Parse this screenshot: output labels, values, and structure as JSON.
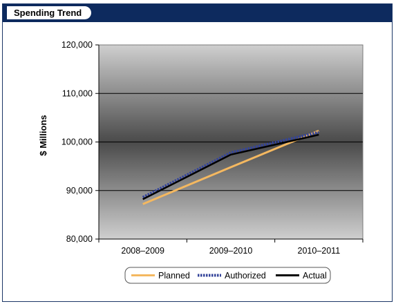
{
  "panel": {
    "title": "Spending Trend"
  },
  "chart_data": {
    "type": "line",
    "title": "",
    "xlabel": "",
    "ylabel": "$ Millions",
    "categories": [
      "2008–2009",
      "2009–2010",
      "2010–2011"
    ],
    "ylim": [
      80000,
      120000
    ],
    "yticks": [
      80000,
      90000,
      100000,
      110000,
      120000
    ],
    "ytick_labels": [
      "80,000",
      "90,000",
      "100,000",
      "110,000",
      "120,000"
    ],
    "grid": true,
    "legend_position": "bottom",
    "series": [
      {
        "name": "Planned",
        "values": [
          87200,
          94800,
          102300
        ],
        "color": "#f4b860",
        "style": "solid"
      },
      {
        "name": "Authorized",
        "values": [
          88600,
          97800,
          102000
        ],
        "color": "#34449a",
        "style": "dotted"
      },
      {
        "name": "Actual",
        "values": [
          88200,
          97400,
          101500
        ],
        "color": "#000000",
        "style": "solid"
      }
    ],
    "colors": {
      "plot_background_edge": "#c8c8c8",
      "plot_background_center": "#4a4a4a",
      "header": "#0d2a5e"
    }
  }
}
